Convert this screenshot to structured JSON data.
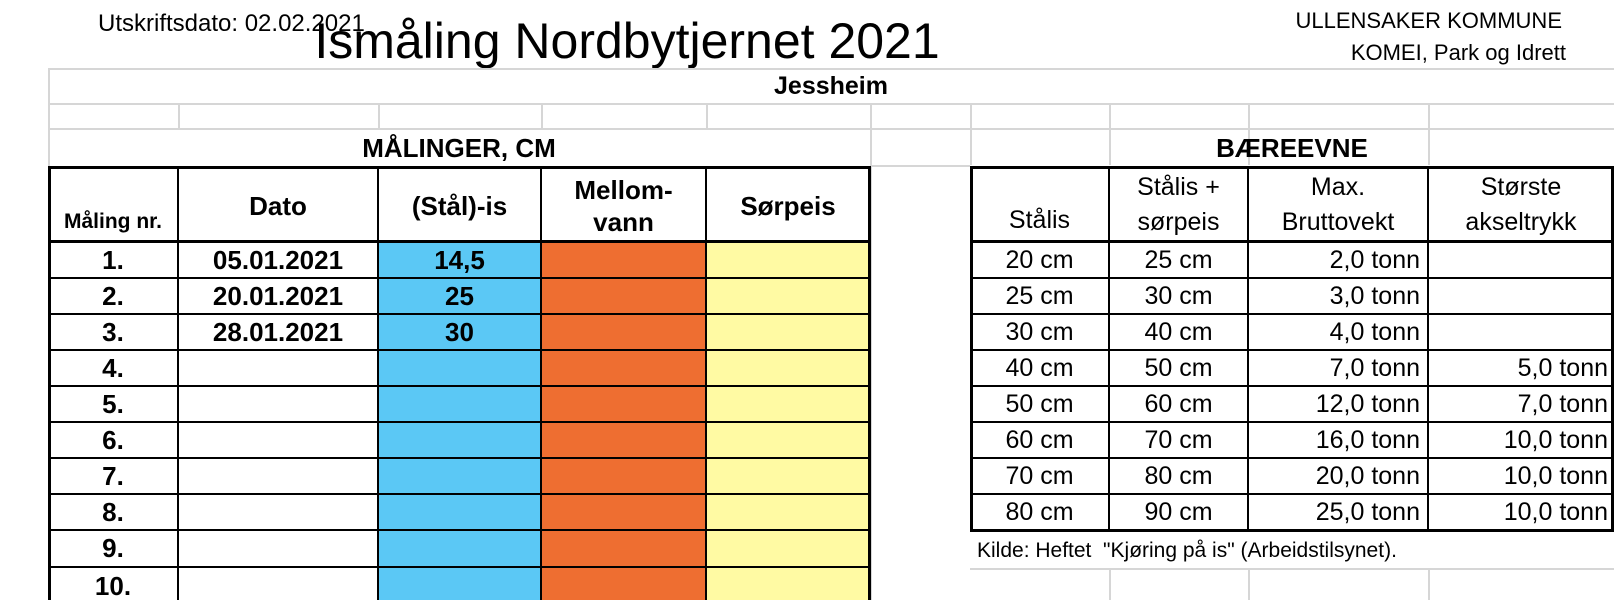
{
  "header": {
    "print_date": "Utskriftsdato: 02.02.2021",
    "title": "Ismåling Nordbytjernet 2021",
    "org_line1": "ULLENSAKER KOMMUNE",
    "org_line2": "KOMEI, Park og Idrett"
  },
  "location": "Jessheim",
  "measurements": {
    "section_title": "MÅLINGER, CM",
    "columns": {
      "nr": "Måling nr.",
      "date": "Dato",
      "ice": "(Stål)-is",
      "water_line1": "Mellom-",
      "water_line2": "vann",
      "slush": "Sørpeis"
    },
    "rows": [
      {
        "nr": "1.",
        "date": "05.01.2021",
        "ice": "14,5"
      },
      {
        "nr": "2.",
        "date": "20.01.2021",
        "ice": "25"
      },
      {
        "nr": "3.",
        "date": "28.01.2021",
        "ice": "30"
      },
      {
        "nr": "4.",
        "date": "",
        "ice": ""
      },
      {
        "nr": "5.",
        "date": "",
        "ice": ""
      },
      {
        "nr": "6.",
        "date": "",
        "ice": ""
      },
      {
        "nr": "7.",
        "date": "",
        "ice": ""
      },
      {
        "nr": "8.",
        "date": "",
        "ice": ""
      },
      {
        "nr": "9.",
        "date": "",
        "ice": ""
      },
      {
        "nr": "10.",
        "date": "",
        "ice": ""
      }
    ],
    "colors": {
      "ice": "#5bc8f5",
      "water": "#ee6e31",
      "slush": "#fffaa3"
    }
  },
  "capacity": {
    "section_title": "BÆREEVNE",
    "columns": {
      "steel": "Stålis",
      "mixed_line1": "Stålis +",
      "mixed_line2": "sørpeis",
      "weight_line1": "Max.",
      "weight_line2": "Bruttovekt",
      "axle_line1": "Største",
      "axle_line2": "akseltrykk"
    },
    "rows": [
      {
        "steel": "20 cm",
        "mixed": "25 cm",
        "weight": "2,0 tonn",
        "axle": ""
      },
      {
        "steel": "25 cm",
        "mixed": "30 cm",
        "weight": "3,0 tonn",
        "axle": ""
      },
      {
        "steel": "30 cm",
        "mixed": "40 cm",
        "weight": "4,0 tonn",
        "axle": ""
      },
      {
        "steel": "40 cm",
        "mixed": "50 cm",
        "weight": "7,0 tonn",
        "axle": "5,0 tonn"
      },
      {
        "steel": "50 cm",
        "mixed": "60 cm",
        "weight": "12,0 tonn",
        "axle": "7,0 tonn"
      },
      {
        "steel": "60 cm",
        "mixed": "70 cm",
        "weight": "16,0 tonn",
        "axle": "10,0 tonn"
      },
      {
        "steel": "70 cm",
        "mixed": "80 cm",
        "weight": "20,0 tonn",
        "axle": "10,0 tonn"
      },
      {
        "steel": "80 cm",
        "mixed": "90 cm",
        "weight": "25,0 tonn",
        "axle": "10,0 tonn"
      }
    ],
    "source": "Kilde: Heftet  \"Kjøring på is\" (Arbeidstilsynet)."
  }
}
